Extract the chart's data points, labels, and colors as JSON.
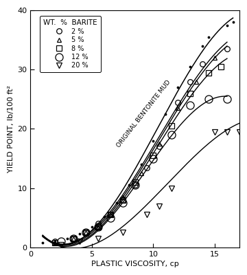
{
  "xlabel": "PLASTIC VISCOSITY, cp",
  "ylabel": "YIELD POINT, lb/100 ft²",
  "xlim": [
    0,
    17
  ],
  "ylim": [
    0,
    40
  ],
  "xticks": [
    0,
    5,
    10,
    15
  ],
  "yticks": [
    0,
    10,
    20,
    30,
    40
  ],
  "annotation": "ORIGINAL BENTONITE MUD",
  "legend_title": "WT.  %  BARITE",
  "legend_entries": [
    "2 %",
    "5 %",
    "8 %",
    "12 %",
    "20 %"
  ],
  "background_color": "#ffffff",
  "curves": {
    "original": {
      "pts_x": [
        1.0,
        2.0,
        3.0,
        4.0,
        5.0,
        6.0,
        7.0,
        8.0,
        9.0,
        10.0,
        11.0,
        12.0,
        13.0,
        14.0,
        14.5,
        16.0,
        16.5
      ],
      "pts_y": [
        0.8,
        1.0,
        1.5,
        2.3,
        3.5,
        5.2,
        7.5,
        10.5,
        14.0,
        18.0,
        22.5,
        27.0,
        30.5,
        34.0,
        35.5,
        37.5,
        38.0
      ]
    },
    "2pct": {
      "pts_x": [
        1.0,
        2.0,
        3.0,
        4.0,
        5.0,
        6.0,
        7.0,
        8.0,
        9.0,
        10.0,
        11.0,
        12.0,
        13.0,
        14.0,
        15.0,
        16.0
      ],
      "pts_y": [
        0.8,
        1.0,
        1.5,
        2.2,
        3.2,
        4.8,
        7.0,
        9.5,
        12.5,
        16.5,
        20.5,
        24.5,
        28.0,
        31.0,
        33.0,
        33.5
      ],
      "data_x": [
        2.0,
        3.5,
        4.5,
        5.5,
        6.5,
        7.5,
        8.5,
        9.5,
        10.5,
        12.0,
        13.0,
        14.0,
        16.0
      ],
      "data_y": [
        1.0,
        1.5,
        2.5,
        4.0,
        5.5,
        8.0,
        10.5,
        13.5,
        17.0,
        24.5,
        28.0,
        31.0,
        33.5
      ]
    },
    "5pct": {
      "pts_x": [
        1.0,
        2.0,
        3.0,
        4.0,
        5.0,
        6.0,
        7.0,
        8.0,
        9.0,
        10.0,
        11.0,
        12.0,
        13.0,
        14.0,
        15.0,
        16.0
      ],
      "pts_y": [
        0.8,
        1.0,
        1.4,
        2.0,
        3.0,
        4.5,
        6.5,
        9.0,
        12.0,
        16.0,
        20.0,
        24.0,
        27.5,
        30.5,
        32.0,
        33.0
      ],
      "data_x": [
        2.0,
        3.5,
        4.5,
        5.5,
        6.5,
        7.5,
        9.0,
        10.5,
        12.0,
        13.5,
        15.0
      ],
      "data_y": [
        0.8,
        1.5,
        2.5,
        3.5,
        5.5,
        8.5,
        12.5,
        17.5,
        23.5,
        28.0,
        32.0
      ]
    },
    "8pct": {
      "pts_x": [
        1.0,
        2.0,
        3.0,
        4.0,
        5.0,
        6.0,
        7.0,
        8.0,
        9.0,
        10.0,
        11.0,
        12.0,
        13.0,
        14.0,
        15.0,
        16.0
      ],
      "pts_y": [
        0.8,
        1.0,
        1.3,
        1.9,
        2.8,
        4.2,
        6.0,
        8.5,
        11.5,
        15.0,
        19.0,
        23.0,
        26.5,
        29.5,
        30.5,
        30.5
      ],
      "data_x": [
        2.0,
        3.5,
        4.5,
        5.5,
        6.5,
        7.5,
        8.5,
        10.0,
        11.5,
        13.0,
        14.5,
        15.5
      ],
      "data_y": [
        0.8,
        1.5,
        2.5,
        3.5,
        5.5,
        8.0,
        11.0,
        15.5,
        20.5,
        26.0,
        29.5,
        30.5
      ]
    },
    "12pct": {
      "pts_x": [
        1.0,
        2.0,
        3.0,
        4.0,
        5.0,
        6.0,
        7.0,
        8.0,
        9.0,
        10.0,
        11.0,
        12.0,
        13.0,
        14.0,
        15.0,
        16.0
      ],
      "pts_y": [
        0.7,
        0.9,
        1.2,
        1.7,
        2.5,
        3.8,
        5.5,
        8.0,
        10.5,
        14.0,
        17.5,
        21.5,
        24.0,
        24.5,
        24.5,
        25.0
      ],
      "data_x": [
        2.5,
        3.5,
        4.5,
        5.5,
        6.5,
        7.5,
        8.5,
        10.0,
        11.5,
        13.0,
        14.5,
        16.0
      ],
      "data_y": [
        1.0,
        1.5,
        2.5,
        3.5,
        5.0,
        7.5,
        10.5,
        15.0,
        19.0,
        24.0,
        25.0,
        25.0
      ]
    },
    "20pct": {
      "pts_x": [
        1.0,
        2.0,
        3.0,
        4.0,
        5.0,
        6.0,
        7.0,
        8.0,
        9.0,
        10.0,
        11.0,
        12.0,
        13.0,
        14.0,
        15.0,
        16.0,
        17.0
      ],
      "pts_y": [
        0.5,
        0.6,
        0.8,
        1.0,
        1.3,
        1.8,
        2.5,
        3.5,
        5.0,
        7.0,
        9.5,
        12.5,
        15.5,
        18.5,
        20.0,
        19.5,
        19.5
      ],
      "data_x": [
        2.5,
        4.0,
        5.5,
        7.5,
        9.5,
        10.5,
        11.5,
        15.0,
        16.0,
        17.0
      ],
      "data_y": [
        0.5,
        1.0,
        1.5,
        2.5,
        5.5,
        7.0,
        10.0,
        19.5,
        19.5,
        19.5
      ]
    }
  }
}
